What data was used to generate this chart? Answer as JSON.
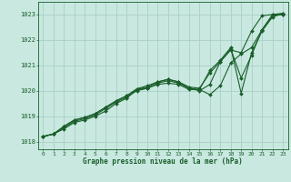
{
  "xlabel": "Graphe pression niveau de la mer (hPa)",
  "xlim": [
    -0.5,
    23.5
  ],
  "ylim": [
    1017.7,
    1023.5
  ],
  "yticks": [
    1018,
    1019,
    1020,
    1021,
    1022,
    1023
  ],
  "xticks": [
    0,
    1,
    2,
    3,
    4,
    5,
    6,
    7,
    8,
    9,
    10,
    11,
    12,
    13,
    14,
    15,
    16,
    17,
    18,
    19,
    20,
    21,
    22,
    23
  ],
  "bg_color": "#c8e8e0",
  "grid_color": "#aad0c8",
  "line_color": "#1a5e2a",
  "series": [
    [
      1018.2,
      1018.3,
      1018.5,
      1018.75,
      1018.85,
      1019.0,
      1019.2,
      1019.5,
      1019.7,
      1020.05,
      1020.1,
      1020.25,
      1020.3,
      1020.25,
      1020.05,
      1020.05,
      1019.85,
      1020.2,
      1021.1,
      1021.45,
      1021.7,
      1022.4,
      1022.95,
      1023.0
    ],
    [
      1018.2,
      1018.3,
      1018.55,
      1018.8,
      1018.9,
      1019.05,
      1019.3,
      1019.55,
      1019.75,
      1020.0,
      1020.1,
      1020.3,
      1020.4,
      1020.3,
      1020.1,
      1020.0,
      1020.25,
      1021.15,
      1021.6,
      1021.5,
      1022.35,
      1022.95,
      1023.0,
      1023.0
    ],
    [
      1018.2,
      1018.3,
      1018.6,
      1018.85,
      1018.95,
      1019.1,
      1019.35,
      1019.6,
      1019.8,
      1020.05,
      1020.15,
      1020.35,
      1020.45,
      1020.35,
      1020.15,
      1020.1,
      1020.7,
      1021.15,
      1021.65,
      1020.5,
      1021.4,
      1022.4,
      1023.0,
      1023.05
    ],
    [
      1018.2,
      1018.3,
      1018.6,
      1018.85,
      1018.95,
      1019.1,
      1019.35,
      1019.6,
      1019.8,
      1020.08,
      1020.2,
      1020.35,
      1020.45,
      1020.35,
      1020.1,
      1020.05,
      1020.8,
      1021.2,
      1021.7,
      1019.9,
      1021.5,
      1022.35,
      1022.9,
      1023.05
    ]
  ]
}
